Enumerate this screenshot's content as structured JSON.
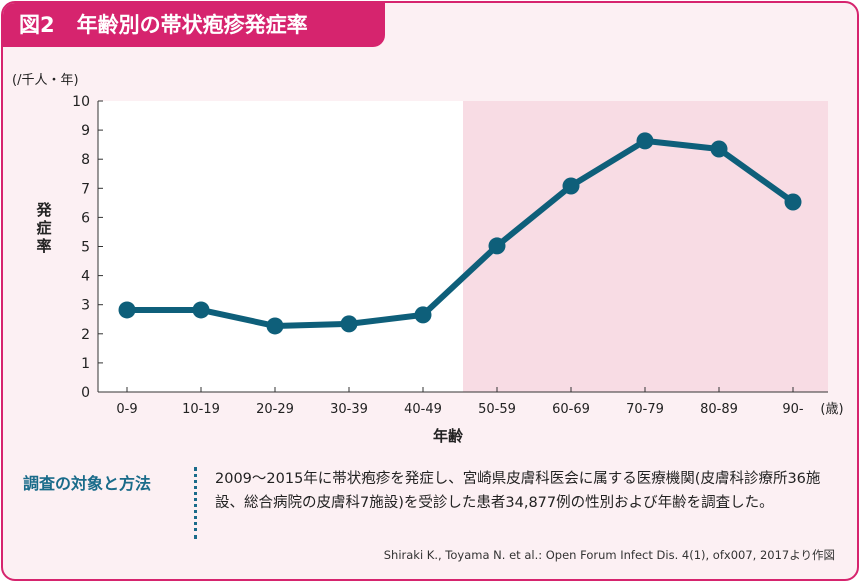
{
  "title": {
    "figure": "図2",
    "text": "年齢別の帯状疱疹発症率"
  },
  "chart_data": {
    "type": "line",
    "unit_label": "(/千人・年)",
    "ylabel": "発症率",
    "xlabel": "年齢",
    "x_unit": "(歳)",
    "categories": [
      "0-9",
      "10-19",
      "20-29",
      "30-39",
      "40-49",
      "50-59",
      "60-69",
      "70-79",
      "80-89",
      "90-"
    ],
    "values": [
      2.82,
      2.82,
      2.27,
      2.34,
      2.65,
      5.02,
      7.08,
      8.63,
      8.35,
      6.53
    ],
    "ylim": [
      0,
      10
    ],
    "yticks": [
      "0",
      "1",
      "2",
      "3",
      "4",
      "5",
      "6",
      "7",
      "8",
      "9",
      "10"
    ],
    "highlight_from": "50-59",
    "grid": false,
    "colors": {
      "line": "#0e5f7a",
      "highlight": "#f8dce4",
      "plot_bg": "#ffffff"
    }
  },
  "method": {
    "label": "調査の対象と方法",
    "text": "2009〜2015年に帯状疱疹を発症し、宮崎県皮膚科医会に属する医療機関(皮膚科診療所36施設、総合病院の皮膚科7施設)を受診した患者34,877例の性別および年齢を調査した。"
  },
  "citation": "Shiraki K., Toyama N. et al.: Open Forum Infect Dis. 4(1), ofx007, 2017より作図"
}
